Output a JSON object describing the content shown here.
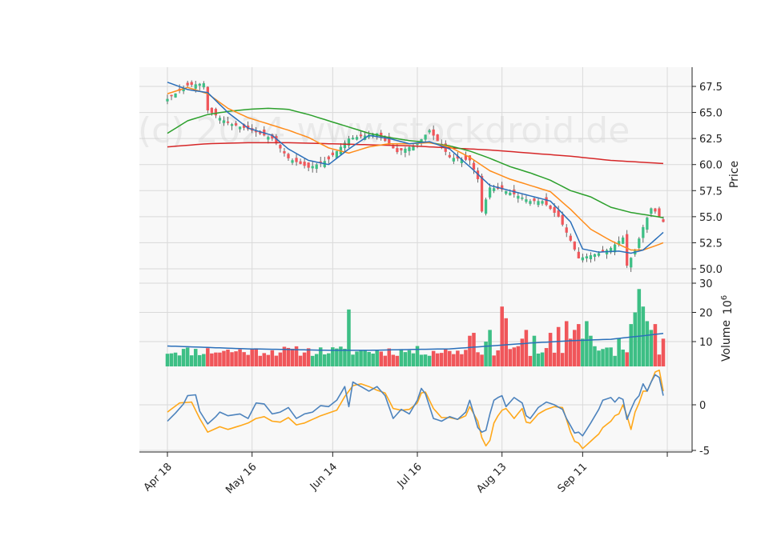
{
  "chart_data": {
    "type": "candlestick",
    "watermark": "(c) 2024 www.stockdroid.de",
    "x_tick_labels": [
      "Apr 18",
      "May 16",
      "Jun 14",
      "Jul 16",
      "Aug 13",
      "Sep 11"
    ],
    "n_days": 124,
    "tick_indices": [
      0,
      21,
      41,
      62,
      83,
      103,
      124
    ],
    "price_panel": {
      "ylabel": "Price",
      "ylim": [
        49.8,
        69.0
      ],
      "yticks": [
        "67.5",
        "65.0",
        "62.5",
        "60.0",
        "57.5",
        "55.0",
        "52.5",
        "50.0"
      ],
      "ytick_values": [
        67.5,
        65.0,
        62.5,
        60.0,
        57.5,
        55.0,
        52.5,
        50.0
      ],
      "close_anchors": [
        [
          0,
          66.3
        ],
        [
          5,
          67.6
        ],
        [
          9,
          67.8
        ],
        [
          10,
          65.2
        ],
        [
          15,
          64.0
        ],
        [
          20,
          63.4
        ],
        [
          26,
          62.5
        ],
        [
          30,
          60.6
        ],
        [
          35,
          59.7
        ],
        [
          40,
          60.5
        ],
        [
          45,
          62.5
        ],
        [
          52,
          63.0
        ],
        [
          57,
          61.2
        ],
        [
          62,
          62.0
        ],
        [
          65,
          63.3
        ],
        [
          70,
          60.7
        ],
        [
          75,
          60.4
        ],
        [
          77,
          58.6
        ],
        [
          78,
          55.5
        ],
        [
          80,
          57.8
        ],
        [
          83,
          57.6
        ],
        [
          87,
          57.0
        ],
        [
          90,
          56.5
        ],
        [
          93,
          56.5
        ],
        [
          97,
          55.0
        ],
        [
          100,
          52.7
        ],
        [
          102,
          51.0
        ],
        [
          105,
          51.3
        ],
        [
          108,
          51.6
        ],
        [
          110,
          52.0
        ],
        [
          113,
          53.0
        ],
        [
          114,
          50.3
        ],
        [
          116,
          51.8
        ],
        [
          118,
          54.0
        ],
        [
          120,
          55.8
        ],
        [
          121,
          55.5
        ],
        [
          123,
          54.5
        ]
      ],
      "ma_fast_anchors": [
        [
          0,
          67.9
        ],
        [
          5,
          67.2
        ],
        [
          10,
          66.9
        ],
        [
          15,
          65.0
        ],
        [
          20,
          63.5
        ],
        [
          26,
          62.8
        ],
        [
          30,
          61.5
        ],
        [
          35,
          60.4
        ],
        [
          40,
          60.0
        ],
        [
          45,
          61.5
        ],
        [
          50,
          62.8
        ],
        [
          55,
          62.5
        ],
        [
          60,
          62.0
        ],
        [
          65,
          62.2
        ],
        [
          70,
          61.5
        ],
        [
          75,
          59.8
        ],
        [
          80,
          58.0
        ],
        [
          85,
          57.5
        ],
        [
          90,
          57.0
        ],
        [
          95,
          56.5
        ],
        [
          100,
          54.5
        ],
        [
          103,
          51.9
        ],
        [
          107,
          51.6
        ],
        [
          112,
          51.7
        ],
        [
          115,
          51.5
        ],
        [
          118,
          51.8
        ],
        [
          121,
          52.8
        ],
        [
          123,
          53.5
        ]
      ],
      "ma_mid_anchors": [
        [
          0,
          66.8
        ],
        [
          5,
          67.4
        ],
        [
          10,
          66.8
        ],
        [
          15,
          65.4
        ],
        [
          20,
          64.5
        ],
        [
          25,
          63.9
        ],
        [
          30,
          63.3
        ],
        [
          35,
          62.6
        ],
        [
          40,
          61.6
        ],
        [
          45,
          61.1
        ],
        [
          50,
          61.7
        ],
        [
          55,
          62.0
        ],
        [
          60,
          62.0
        ],
        [
          65,
          62.1
        ],
        [
          70,
          61.7
        ],
        [
          75,
          60.7
        ],
        [
          80,
          59.4
        ],
        [
          85,
          58.6
        ],
        [
          90,
          58.0
        ],
        [
          95,
          57.4
        ],
        [
          100,
          55.7
        ],
        [
          105,
          53.8
        ],
        [
          110,
          52.7
        ],
        [
          115,
          51.8
        ],
        [
          118,
          51.8
        ],
        [
          121,
          52.2
        ],
        [
          123,
          52.5
        ]
      ],
      "ma_slow_anchors": [
        [
          0,
          63.0
        ],
        [
          5,
          64.2
        ],
        [
          10,
          64.8
        ],
        [
          15,
          65.1
        ],
        [
          20,
          65.3
        ],
        [
          25,
          65.4
        ],
        [
          30,
          65.3
        ],
        [
          35,
          64.8
        ],
        [
          40,
          64.2
        ],
        [
          45,
          63.6
        ],
        [
          50,
          63.0
        ],
        [
          55,
          62.6
        ],
        [
          60,
          62.3
        ],
        [
          65,
          62.1
        ],
        [
          70,
          61.8
        ],
        [
          75,
          61.3
        ],
        [
          80,
          60.6
        ],
        [
          85,
          59.8
        ],
        [
          90,
          59.2
        ],
        [
          95,
          58.5
        ],
        [
          100,
          57.5
        ],
        [
          105,
          56.9
        ],
        [
          110,
          55.9
        ],
        [
          115,
          55.4
        ],
        [
          120,
          55.1
        ],
        [
          123,
          54.9
        ]
      ],
      "ma_long_anchors": [
        [
          0,
          61.7
        ],
        [
          10,
          62.0
        ],
        [
          20,
          62.1
        ],
        [
          30,
          62.1
        ],
        [
          40,
          62.0
        ],
        [
          50,
          61.9
        ],
        [
          60,
          61.8
        ],
        [
          70,
          61.6
        ],
        [
          80,
          61.4
        ],
        [
          90,
          61.1
        ],
        [
          100,
          60.8
        ],
        [
          110,
          60.4
        ],
        [
          123,
          60.1
        ]
      ]
    },
    "volume_panel": {
      "ylabel": "Volume",
      "ylabel_exponent": "6",
      "ylim": [
        3,
        30
      ],
      "yticks": [
        "30",
        "20",
        "10"
      ],
      "ytick_values": [
        30,
        20,
        10
      ],
      "spikes": [
        [
          45,
          21
        ],
        [
          75,
          12
        ],
        [
          76,
          13
        ],
        [
          79,
          10
        ],
        [
          80,
          14
        ],
        [
          82,
          7
        ],
        [
          83,
          22
        ],
        [
          84,
          18
        ],
        [
          86,
          8
        ],
        [
          88,
          11
        ],
        [
          89,
          14
        ],
        [
          91,
          12
        ],
        [
          95,
          13
        ],
        [
          97,
          15
        ],
        [
          99,
          17
        ],
        [
          100,
          11
        ],
        [
          101,
          14
        ],
        [
          102,
          16
        ],
        [
          103,
          11
        ],
        [
          104,
          17
        ],
        [
          105,
          12
        ],
        [
          110,
          8
        ],
        [
          112,
          11
        ],
        [
          115,
          16
        ],
        [
          116,
          20
        ],
        [
          117,
          28
        ],
        [
          118,
          22
        ],
        [
          119,
          17
        ],
        [
          120,
          14
        ],
        [
          121,
          16
        ],
        [
          123,
          11
        ]
      ],
      "ma_anchors": [
        [
          0,
          8.5
        ],
        [
          10,
          8.0
        ],
        [
          20,
          7.5
        ],
        [
          30,
          7.3
        ],
        [
          40,
          7.0
        ],
        [
          50,
          7.0
        ],
        [
          60,
          7.3
        ],
        [
          70,
          7.5
        ],
        [
          80,
          8.5
        ],
        [
          90,
          9.5
        ],
        [
          100,
          10.3
        ],
        [
          110,
          10.8
        ],
        [
          118,
          12.0
        ],
        [
          123,
          12.8
        ]
      ]
    },
    "indicator_panel": {
      "ylim": [
        -5.3,
        4.2
      ],
      "yticks": [
        "0",
        "-5"
      ],
      "ytick_values": [
        0,
        -5
      ],
      "macd_anchors": [
        [
          0,
          -1.8
        ],
        [
          2,
          -0.9
        ],
        [
          4,
          0.1
        ],
        [
          5,
          1.0
        ],
        [
          7,
          1.1
        ],
        [
          8,
          -0.7
        ],
        [
          10,
          -2.1
        ],
        [
          12,
          -1.3
        ],
        [
          13,
          -0.8
        ],
        [
          15,
          -1.2
        ],
        [
          18,
          -1.0
        ],
        [
          20,
          -1.5
        ],
        [
          22,
          0.2
        ],
        [
          24,
          0.1
        ],
        [
          26,
          -1.0
        ],
        [
          28,
          -0.8
        ],
        [
          30,
          -0.3
        ],
        [
          32,
          -1.5
        ],
        [
          34,
          -1.0
        ],
        [
          36,
          -0.8
        ],
        [
          38,
          -0.1
        ],
        [
          40,
          -0.2
        ],
        [
          42,
          0.5
        ],
        [
          44,
          2.0
        ],
        [
          45,
          -0.2
        ],
        [
          46,
          2.5
        ],
        [
          48,
          2.0
        ],
        [
          50,
          1.5
        ],
        [
          52,
          2.0
        ],
        [
          54,
          1.0
        ],
        [
          56,
          -1.5
        ],
        [
          58,
          -0.5
        ],
        [
          60,
          -1.0
        ],
        [
          62,
          0.5
        ],
        [
          63,
          1.8
        ],
        [
          64,
          1.2
        ],
        [
          66,
          -1.5
        ],
        [
          68,
          -1.8
        ],
        [
          70,
          -1.3
        ],
        [
          72,
          -1.6
        ],
        [
          74,
          -0.8
        ],
        [
          75,
          0.5
        ],
        [
          77,
          -2.5
        ],
        [
          78,
          -3.0
        ],
        [
          79,
          -2.8
        ],
        [
          80,
          -1.0
        ],
        [
          81,
          0.5
        ],
        [
          82,
          0.8
        ],
        [
          83,
          1.0
        ],
        [
          84,
          -0.2
        ],
        [
          86,
          0.8
        ],
        [
          88,
          0.2
        ],
        [
          89,
          -1.2
        ],
        [
          90,
          -1.5
        ],
        [
          92,
          -0.3
        ],
        [
          94,
          0.3
        ],
        [
          96,
          0.0
        ],
        [
          98,
          -0.5
        ],
        [
          99,
          -1.5
        ],
        [
          100,
          -2.3
        ],
        [
          101,
          -3.1
        ],
        [
          102,
          -3.0
        ],
        [
          103,
          -3.4
        ],
        [
          105,
          -2.0
        ],
        [
          107,
          -0.5
        ],
        [
          108,
          0.5
        ],
        [
          110,
          0.8
        ],
        [
          111,
          0.3
        ],
        [
          112,
          0.8
        ],
        [
          113,
          0.6
        ],
        [
          114,
          -1.6
        ],
        [
          115,
          -0.5
        ],
        [
          116,
          0.5
        ],
        [
          117,
          1.0
        ],
        [
          118,
          2.3
        ],
        [
          119,
          1.5
        ],
        [
          120,
          2.5
        ],
        [
          121,
          3.3
        ],
        [
          122,
          3.0
        ],
        [
          123,
          1.0
        ]
      ],
      "signal_anchors": [
        [
          0,
          -0.8
        ],
        [
          3,
          0.2
        ],
        [
          6,
          0.3
        ],
        [
          8,
          -1.5
        ],
        [
          10,
          -3.0
        ],
        [
          13,
          -2.4
        ],
        [
          15,
          -2.7
        ],
        [
          18,
          -2.3
        ],
        [
          20,
          -2.0
        ],
        [
          22,
          -1.5
        ],
        [
          24,
          -1.3
        ],
        [
          26,
          -1.8
        ],
        [
          28,
          -1.9
        ],
        [
          30,
          -1.4
        ],
        [
          32,
          -2.2
        ],
        [
          34,
          -2.0
        ],
        [
          36,
          -1.6
        ],
        [
          38,
          -1.2
        ],
        [
          40,
          -0.9
        ],
        [
          42,
          -0.6
        ],
        [
          44,
          0.9
        ],
        [
          46,
          2.1
        ],
        [
          48,
          2.3
        ],
        [
          50,
          2.0
        ],
        [
          52,
          1.6
        ],
        [
          54,
          1.3
        ],
        [
          56,
          -0.4
        ],
        [
          58,
          -0.6
        ],
        [
          60,
          -0.5
        ],
        [
          62,
          0.2
        ],
        [
          63,
          1.3
        ],
        [
          64,
          1.4
        ],
        [
          66,
          -0.4
        ],
        [
          68,
          -1.4
        ],
        [
          70,
          -1.4
        ],
        [
          72,
          -1.6
        ],
        [
          74,
          -1.2
        ],
        [
          75,
          -0.2
        ],
        [
          77,
          -1.8
        ],
        [
          78,
          -3.6
        ],
        [
          79,
          -4.5
        ],
        [
          80,
          -3.9
        ],
        [
          81,
          -2.0
        ],
        [
          82,
          -1.2
        ],
        [
          83,
          -0.6
        ],
        [
          84,
          -0.4
        ],
        [
          86,
          -1.5
        ],
        [
          88,
          -0.4
        ],
        [
          89,
          -1.9
        ],
        [
          90,
          -2.0
        ],
        [
          92,
          -1.0
        ],
        [
          94,
          -0.5
        ],
        [
          96,
          -0.2
        ],
        [
          98,
          -0.3
        ],
        [
          99,
          -1.6
        ],
        [
          100,
          -3.0
        ],
        [
          101,
          -4.0
        ],
        [
          102,
          -4.2
        ],
        [
          103,
          -4.8
        ],
        [
          105,
          -4.0
        ],
        [
          107,
          -3.2
        ],
        [
          108,
          -2.5
        ],
        [
          110,
          -1.8
        ],
        [
          111,
          -1.2
        ],
        [
          112,
          -1.0
        ],
        [
          113,
          0.0
        ],
        [
          114,
          -1.2
        ],
        [
          115,
          -2.7
        ],
        [
          116,
          -0.8
        ],
        [
          117,
          0.2
        ],
        [
          118,
          1.5
        ],
        [
          119,
          1.5
        ],
        [
          120,
          2.5
        ],
        [
          121,
          3.6
        ],
        [
          122,
          3.8
        ],
        [
          123,
          1.5
        ]
      ]
    },
    "colors": {
      "up": "#3dbf85",
      "down": "#f0565a",
      "ma_fast": "#2a6fba",
      "ma_mid": "#ff8c1a",
      "ma_slow": "#2ca02c",
      "ma_long": "#d62728",
      "volume_ma": "#2a6fba",
      "macd": "#4d83bd",
      "signal": "#ffa81a",
      "grid": "#d9d9d9",
      "panel_bg": "#f8f8f8"
    }
  }
}
